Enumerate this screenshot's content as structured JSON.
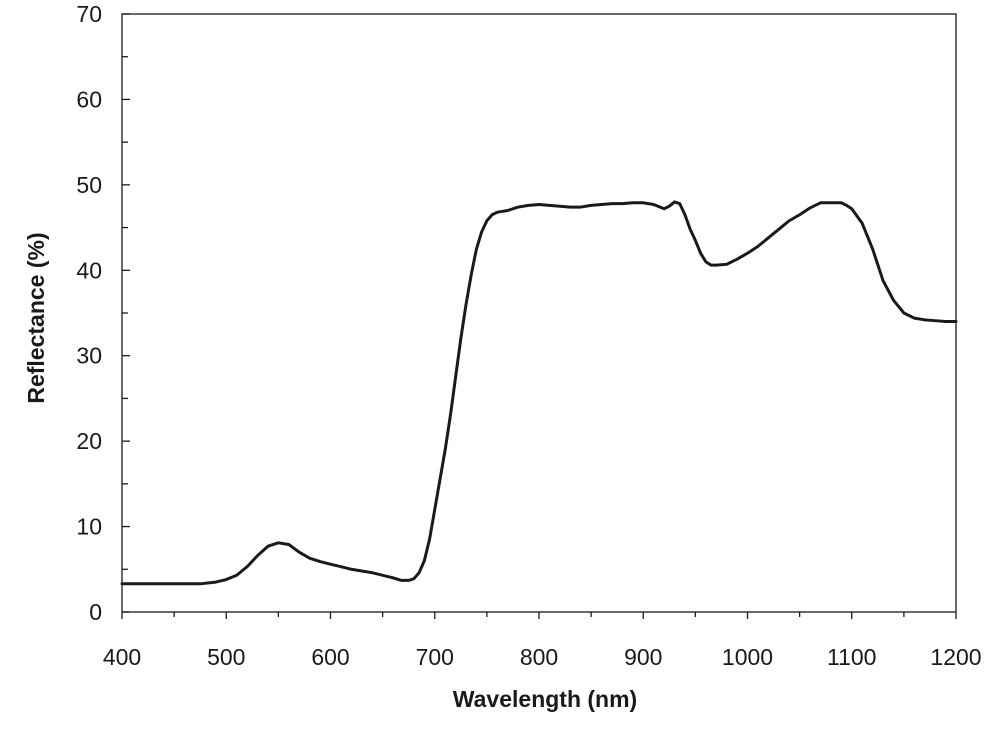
{
  "chart_data": {
    "type": "line",
    "xlabel": "Wavelength (nm)",
    "ylabel": "Reflectance (%)",
    "xlim": [
      400,
      1200
    ],
    "ylim": [
      0,
      70
    ],
    "x_ticks": [
      400,
      500,
      600,
      700,
      800,
      900,
      1000,
      1100,
      1200
    ],
    "y_ticks": [
      0,
      10,
      20,
      30,
      40,
      50,
      60,
      70
    ],
    "grid": false,
    "legend": "none",
    "line_color": "#1a1a1a",
    "series": [
      {
        "x": [
          400,
          420,
          440,
          460,
          475,
          490,
          500,
          510,
          520,
          530,
          540,
          550,
          560,
          570,
          580,
          590,
          600,
          610,
          620,
          630,
          640,
          650,
          660,
          668,
          675,
          680,
          685,
          690,
          695,
          700,
          705,
          710,
          715,
          720,
          725,
          730,
          735,
          740,
          745,
          750,
          755,
          760,
          770,
          780,
          790,
          800,
          810,
          820,
          830,
          840,
          850,
          860,
          870,
          880,
          890,
          900,
          910,
          920,
          925,
          930,
          935,
          940,
          945,
          950,
          955,
          960,
          965,
          970,
          980,
          990,
          1000,
          1010,
          1020,
          1030,
          1040,
          1050,
          1060,
          1070,
          1080,
          1090,
          1095,
          1100,
          1110,
          1120,
          1130,
          1140,
          1150,
          1160,
          1170,
          1180,
          1190,
          1200
        ],
        "y": [
          3.3,
          3.3,
          3.3,
          3.3,
          3.3,
          3.5,
          3.8,
          4.3,
          5.3,
          6.6,
          7.7,
          8.1,
          7.9,
          7.0,
          6.3,
          5.9,
          5.6,
          5.3,
          5.0,
          4.8,
          4.6,
          4.3,
          4.0,
          3.7,
          3.7,
          3.9,
          4.6,
          6.0,
          8.5,
          12.0,
          15.5,
          19.0,
          23.0,
          27.5,
          32.0,
          36.0,
          39.5,
          42.5,
          44.5,
          45.8,
          46.5,
          46.8,
          47.0,
          47.4,
          47.6,
          47.7,
          47.6,
          47.5,
          47.4,
          47.4,
          47.6,
          47.7,
          47.8,
          47.8,
          47.9,
          47.9,
          47.7,
          47.2,
          47.5,
          48.0,
          47.8,
          46.5,
          44.8,
          43.5,
          42.0,
          41.0,
          40.6,
          40.6,
          40.7,
          41.3,
          42.0,
          42.8,
          43.8,
          44.8,
          45.8,
          46.5,
          47.3,
          47.9,
          47.9,
          47.9,
          47.6,
          47.2,
          45.5,
          42.5,
          38.8,
          36.5,
          35.0,
          34.4,
          34.2,
          34.1,
          34.0,
          34.0
        ]
      }
    ]
  }
}
